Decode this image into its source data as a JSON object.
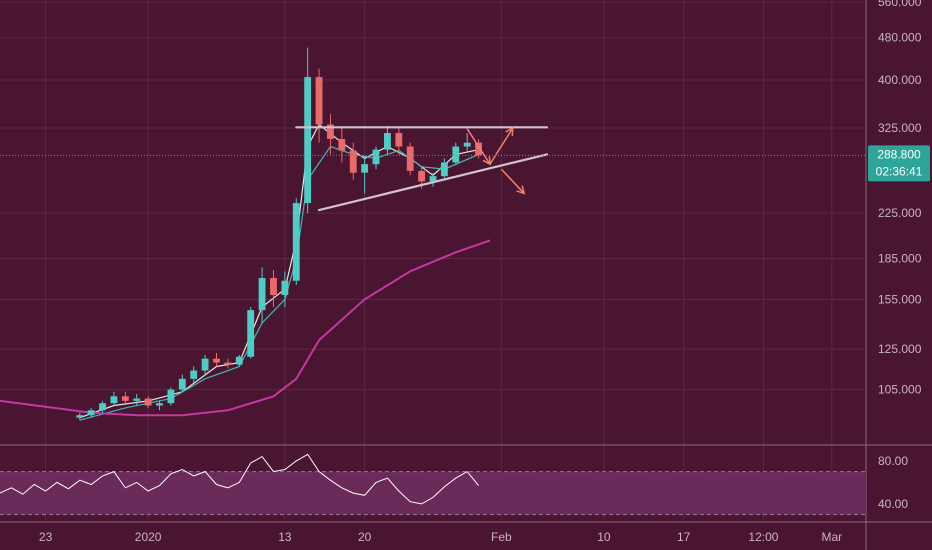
{
  "colors": {
    "background": "#4a1530",
    "grid": "#5c2843",
    "axis_text": "#c9b4c0",
    "candle_up": "#4ecdc4",
    "candle_down": "#e86a6a",
    "ma_fast": "#e6e6e6",
    "ma_mid": "#3fb9b0",
    "ma_slow": "#c438a0",
    "trendline": "#d0c4cc",
    "arrow": "#f08070",
    "rsi_line": "#ffffff",
    "rsi_band": "#6a2a5a",
    "current_price_bg": "#2fa59a",
    "separator": "#8a6a7c"
  },
  "current_price": {
    "value": 288.8,
    "label": "288.800",
    "countdown": "02:36:41"
  },
  "chart_data": {
    "type": "candlestick",
    "ylim": [
      83,
      565
    ],
    "y_scale": "log",
    "y_ticks": [
      {
        "value": 560,
        "label": "560.000"
      },
      {
        "value": 480,
        "label": "480.000"
      },
      {
        "value": 400,
        "label": "400.000"
      },
      {
        "value": 325,
        "label": "325.000"
      },
      {
        "value": 225,
        "label": "225.000"
      },
      {
        "value": 185,
        "label": "185.000"
      },
      {
        "value": 155,
        "label": "155.000"
      },
      {
        "value": 125,
        "label": "125.000"
      },
      {
        "value": 105,
        "label": "105.000"
      }
    ],
    "x_domain": [
      "2019-12-19",
      "2020-03-04"
    ],
    "x_ticks": [
      {
        "date": "2019-12-23",
        "label": "23"
      },
      {
        "date": "2020-01-01",
        "label": "2020"
      },
      {
        "date": "2020-01-13",
        "label": "13"
      },
      {
        "date": "2020-01-20",
        "label": "20"
      },
      {
        "date": "2020-02-01",
        "label": "Feb"
      },
      {
        "date": "2020-02-10",
        "label": "10"
      },
      {
        "date": "2020-02-17",
        "label": "17"
      },
      {
        "date": "2020-02-24",
        "label": "12:00"
      },
      {
        "date": "2020-03-01",
        "label": "Mar"
      }
    ],
    "candles": [
      [
        "2019-12-26",
        93,
        95,
        92,
        94
      ],
      [
        "2019-12-27",
        94,
        97,
        93,
        96
      ],
      [
        "2019-12-28",
        96,
        100,
        95,
        99
      ],
      [
        "2019-12-29",
        99,
        104,
        98,
        102
      ],
      [
        "2019-12-30",
        102,
        104,
        99,
        100
      ],
      [
        "2019-12-31",
        100,
        103,
        98,
        101
      ],
      [
        "2020-01-01",
        101,
        102,
        97,
        98
      ],
      [
        "2020-01-02",
        98,
        100,
        96,
        99
      ],
      [
        "2020-01-03",
        99,
        106,
        98,
        105
      ],
      [
        "2020-01-04",
        105,
        112,
        104,
        110
      ],
      [
        "2020-01-05",
        110,
        116,
        108,
        114
      ],
      [
        "2020-01-06",
        114,
        122,
        112,
        120
      ],
      [
        "2020-01-07",
        120,
        123,
        116,
        118
      ],
      [
        "2020-01-08",
        118,
        120,
        115,
        117
      ],
      [
        "2020-01-09",
        117,
        122,
        116,
        121
      ],
      [
        "2020-01-10",
        121,
        150,
        120,
        148
      ],
      [
        "2020-01-11",
        148,
        178,
        140,
        170
      ],
      [
        "2020-01-12",
        170,
        176,
        150,
        158
      ],
      [
        "2020-01-13",
        158,
        175,
        150,
        168
      ],
      [
        "2020-01-14",
        168,
        240,
        165,
        235
      ],
      [
        "2020-01-15",
        235,
        460,
        225,
        405
      ],
      [
        "2020-01-16",
        405,
        420,
        305,
        330
      ],
      [
        "2020-01-17",
        330,
        345,
        290,
        310
      ],
      [
        "2020-01-18",
        310,
        325,
        280,
        295
      ],
      [
        "2020-01-19",
        295,
        305,
        260,
        268
      ],
      [
        "2020-01-20",
        268,
        285,
        245,
        278
      ],
      [
        "2020-01-21",
        278,
        300,
        272,
        296
      ],
      [
        "2020-01-22",
        296,
        328,
        290,
        318
      ],
      [
        "2020-01-23",
        318,
        325,
        290,
        300
      ],
      [
        "2020-01-24",
        300,
        305,
        265,
        270
      ],
      [
        "2020-01-25",
        270,
        275,
        250,
        258
      ],
      [
        "2020-01-26",
        258,
        268,
        252,
        264
      ],
      [
        "2020-01-27",
        264,
        285,
        262,
        280
      ],
      [
        "2020-01-28",
        280,
        305,
        278,
        300
      ],
      [
        "2020-01-29",
        300,
        318,
        292,
        305
      ],
      [
        "2020-01-30",
        305,
        310,
        285,
        289
      ]
    ],
    "moving_averages": [
      {
        "id": "ma_fast",
        "points": [
          [
            "2019-12-26",
            93
          ],
          [
            "2019-12-29",
            98
          ],
          [
            "2020-01-01",
            100
          ],
          [
            "2020-01-04",
            104
          ],
          [
            "2020-01-07",
            116
          ],
          [
            "2020-01-09",
            118
          ],
          [
            "2020-01-11",
            150
          ],
          [
            "2020-01-13",
            162
          ],
          [
            "2020-01-14",
            200
          ],
          [
            "2020-01-15",
            300
          ],
          [
            "2020-01-16",
            330
          ],
          [
            "2020-01-18",
            305
          ],
          [
            "2020-01-20",
            285
          ],
          [
            "2020-01-22",
            300
          ],
          [
            "2020-01-24",
            285
          ],
          [
            "2020-01-26",
            265
          ],
          [
            "2020-01-28",
            290
          ],
          [
            "2020-01-30",
            296
          ]
        ]
      },
      {
        "id": "ma_mid",
        "points": [
          [
            "2019-12-26",
            92
          ],
          [
            "2019-12-30",
            97
          ],
          [
            "2020-01-03",
            101
          ],
          [
            "2020-01-06",
            110
          ],
          [
            "2020-01-09",
            116
          ],
          [
            "2020-01-11",
            140
          ],
          [
            "2020-01-13",
            155
          ],
          [
            "2020-01-14",
            185
          ],
          [
            "2020-01-15",
            260
          ],
          [
            "2020-01-17",
            300
          ],
          [
            "2020-01-19",
            290
          ],
          [
            "2020-01-21",
            285
          ],
          [
            "2020-01-23",
            295
          ],
          [
            "2020-01-25",
            275
          ],
          [
            "2020-01-27",
            272
          ],
          [
            "2020-01-30",
            290
          ]
        ]
      },
      {
        "id": "ma_slow",
        "points": [
          [
            "2019-12-19",
            100
          ],
          [
            "2019-12-23",
            97.5
          ],
          [
            "2019-12-27",
            95
          ],
          [
            "2019-12-31",
            94
          ],
          [
            "2020-01-04",
            94
          ],
          [
            "2020-01-08",
            96
          ],
          [
            "2020-01-12",
            102
          ],
          [
            "2020-01-14",
            110
          ],
          [
            "2020-01-16",
            130
          ],
          [
            "2020-01-20",
            155
          ],
          [
            "2020-01-24",
            175
          ],
          [
            "2020-01-28",
            190
          ],
          [
            "2020-01-31",
            200
          ]
        ]
      }
    ],
    "trendlines": [
      {
        "id": "resistance-line",
        "from": [
          "2020-01-14",
          326
        ],
        "to": [
          "2020-02-05",
          326
        ]
      },
      {
        "id": "support-line",
        "from": [
          "2020-01-16",
          228
        ],
        "to": [
          "2020-02-05",
          290
        ]
      }
    ],
    "arrows": [
      {
        "id": "arrow-down-first",
        "from": [
          "2020-01-29",
          324
        ],
        "to": [
          "2020-01-31",
          278
        ]
      },
      {
        "id": "arrow-up-target",
        "from": [
          "2020-01-31",
          278
        ],
        "to": [
          "2020-02-02",
          325
        ]
      },
      {
        "id": "arrow-down-target",
        "from": [
          "2020-02-01",
          272
        ],
        "to": [
          "2020-02-03",
          245
        ]
      }
    ],
    "rsi": {
      "ticks": [
        {
          "value": 80,
          "label": "80.00"
        },
        {
          "value": 40,
          "label": "40.00"
        }
      ],
      "band": [
        30,
        70
      ],
      "ylim": [
        25,
        92
      ],
      "values": [
        [
          "2019-12-19",
          50
        ],
        [
          "2019-12-20",
          55
        ],
        [
          "2019-12-21",
          49
        ],
        [
          "2019-12-22",
          58
        ],
        [
          "2019-12-23",
          52
        ],
        [
          "2019-12-24",
          60
        ],
        [
          "2019-12-25",
          54
        ],
        [
          "2019-12-26",
          62
        ],
        [
          "2019-12-27",
          58
        ],
        [
          "2019-12-28",
          66
        ],
        [
          "2019-12-29",
          70
        ],
        [
          "2019-12-30",
          55
        ],
        [
          "2019-12-31",
          60
        ],
        [
          "2020-01-01",
          52
        ],
        [
          "2020-01-02",
          57
        ],
        [
          "2020-01-03",
          68
        ],
        [
          "2020-01-04",
          72
        ],
        [
          "2020-01-05",
          66
        ],
        [
          "2020-01-06",
          70
        ],
        [
          "2020-01-07",
          58
        ],
        [
          "2020-01-08",
          55
        ],
        [
          "2020-01-09",
          60
        ],
        [
          "2020-01-10",
          78
        ],
        [
          "2020-01-11",
          84
        ],
        [
          "2020-01-12",
          70
        ],
        [
          "2020-01-13",
          72
        ],
        [
          "2020-01-14",
          80
        ],
        [
          "2020-01-15",
          86
        ],
        [
          "2020-01-16",
          70
        ],
        [
          "2020-01-17",
          62
        ],
        [
          "2020-01-18",
          55
        ],
        [
          "2020-01-19",
          50
        ],
        [
          "2020-01-20",
          48
        ],
        [
          "2020-01-21",
          60
        ],
        [
          "2020-01-22",
          64
        ],
        [
          "2020-01-23",
          52
        ],
        [
          "2020-01-24",
          42
        ],
        [
          "2020-01-25",
          40
        ],
        [
          "2020-01-26",
          46
        ],
        [
          "2020-01-27",
          56
        ],
        [
          "2020-01-28",
          64
        ],
        [
          "2020-01-29",
          70
        ],
        [
          "2020-01-30",
          57
        ]
      ]
    }
  }
}
